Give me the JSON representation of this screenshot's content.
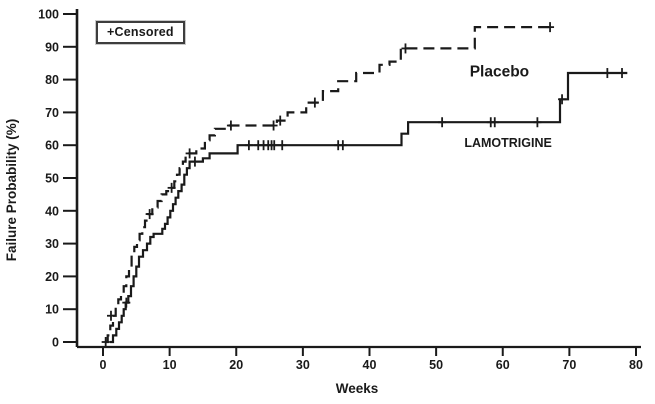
{
  "chart_data": {
    "type": "line",
    "subtype": "kaplan-meier-step-plot",
    "title": "",
    "xlabel": "Weeks",
    "ylabel": "Failure Probability (%)",
    "xlim": [
      0,
      80
    ],
    "ylim": [
      0,
      100
    ],
    "x_ticks": [
      0,
      10,
      20,
      30,
      40,
      50,
      60,
      70,
      80
    ],
    "y_ticks": [
      0,
      10,
      20,
      30,
      40,
      50,
      60,
      70,
      80,
      90,
      100
    ],
    "grid": false,
    "legend": {
      "position": "top-left-inside",
      "censored_label": "+Censored",
      "censor_symbol": "+"
    },
    "colors": {
      "line": "#1a1a1a",
      "text": "#1a1a1a",
      "background": "#ffffff"
    },
    "series": [
      {
        "name": "Placebo",
        "label": "Placebo",
        "style": "dashed",
        "label_style": "large",
        "label_pos": {
          "week": 59.5,
          "pct": 82.5
        },
        "end_week": 67.3,
        "steps": [
          [
            0.3,
            0
          ],
          [
            0.7,
            2
          ],
          [
            1.1,
            5
          ],
          [
            1.5,
            8
          ],
          [
            1.9,
            11
          ],
          [
            2.3,
            13
          ],
          [
            2.7,
            15
          ],
          [
            3.1,
            17
          ],
          [
            3.5,
            20
          ],
          [
            3.9,
            23
          ],
          [
            4.3,
            26
          ],
          [
            4.7,
            29
          ],
          [
            5.1,
            31
          ],
          [
            5.5,
            33
          ],
          [
            5.9,
            35
          ],
          [
            6.3,
            37
          ],
          [
            6.7,
            39
          ],
          [
            7.4,
            41
          ],
          [
            8.2,
            43
          ],
          [
            8.8,
            45
          ],
          [
            9.5,
            46
          ],
          [
            10.1,
            47
          ],
          [
            10.7,
            49
          ],
          [
            11.1,
            51
          ],
          [
            11.5,
            53
          ],
          [
            12.0,
            55
          ],
          [
            12.4,
            57.5
          ],
          [
            14.0,
            59
          ],
          [
            15.3,
            61.5
          ],
          [
            16.0,
            63
          ],
          [
            16.8,
            65
          ],
          [
            18.8,
            66
          ],
          [
            26.1,
            67.5
          ],
          [
            27.7,
            70
          ],
          [
            30.5,
            73
          ],
          [
            33.0,
            76.5
          ],
          [
            35.3,
            79.5
          ],
          [
            38.0,
            82
          ],
          [
            41.5,
            84.5
          ],
          [
            43.0,
            85.5
          ],
          [
            44.7,
            89.5
          ],
          [
            55.8,
            96
          ]
        ],
        "censors": [
          [
            0.4,
            0
          ],
          [
            1.2,
            8
          ],
          [
            7.0,
            39
          ],
          [
            10.3,
            47
          ],
          [
            13.0,
            57.5
          ],
          [
            19.2,
            66
          ],
          [
            25.6,
            66
          ],
          [
            26.6,
            67.5
          ],
          [
            31.8,
            73
          ],
          [
            45.4,
            89.5
          ],
          [
            67.1,
            96
          ]
        ]
      },
      {
        "name": "LAMOTRIGINE",
        "label": "LAMOTRIGINE",
        "style": "solid",
        "label_style": "small",
        "label_pos": {
          "week": 60.8,
          "pct": 61
        },
        "end_week": 78.7,
        "steps": [
          [
            1.0,
            0
          ],
          [
            1.5,
            2
          ],
          [
            2.0,
            4
          ],
          [
            2.4,
            6
          ],
          [
            2.8,
            8
          ],
          [
            3.1,
            10
          ],
          [
            3.4,
            12
          ],
          [
            3.8,
            14
          ],
          [
            4.2,
            17
          ],
          [
            4.6,
            20
          ],
          [
            5.0,
            23
          ],
          [
            5.4,
            26
          ],
          [
            6.0,
            28
          ],
          [
            6.6,
            30
          ],
          [
            7.1,
            32
          ],
          [
            7.6,
            33
          ],
          [
            8.9,
            34.5
          ],
          [
            9.3,
            36
          ],
          [
            9.7,
            38
          ],
          [
            10.1,
            40
          ],
          [
            10.5,
            42
          ],
          [
            10.9,
            44
          ],
          [
            11.3,
            46
          ],
          [
            11.8,
            48
          ],
          [
            12.2,
            51
          ],
          [
            12.6,
            53
          ],
          [
            13.0,
            55
          ],
          [
            15.0,
            56
          ],
          [
            16.0,
            57.5
          ],
          [
            20.2,
            60
          ],
          [
            44.8,
            63.5
          ],
          [
            45.8,
            67
          ],
          [
            68.6,
            74
          ],
          [
            69.8,
            82
          ]
        ],
        "censors": [
          [
            3.5,
            12
          ],
          [
            13.8,
            55
          ],
          [
            21.9,
            60
          ],
          [
            23.3,
            60
          ],
          [
            24.1,
            60
          ],
          [
            24.8,
            60
          ],
          [
            25.3,
            60
          ],
          [
            25.7,
            60
          ],
          [
            26.9,
            60
          ],
          [
            35.3,
            60
          ],
          [
            36.0,
            60
          ],
          [
            50.9,
            67
          ],
          [
            58.2,
            67
          ],
          [
            58.8,
            67
          ],
          [
            65.2,
            67
          ],
          [
            68.9,
            74
          ],
          [
            75.7,
            82
          ],
          [
            77.9,
            82
          ]
        ]
      }
    ]
  }
}
